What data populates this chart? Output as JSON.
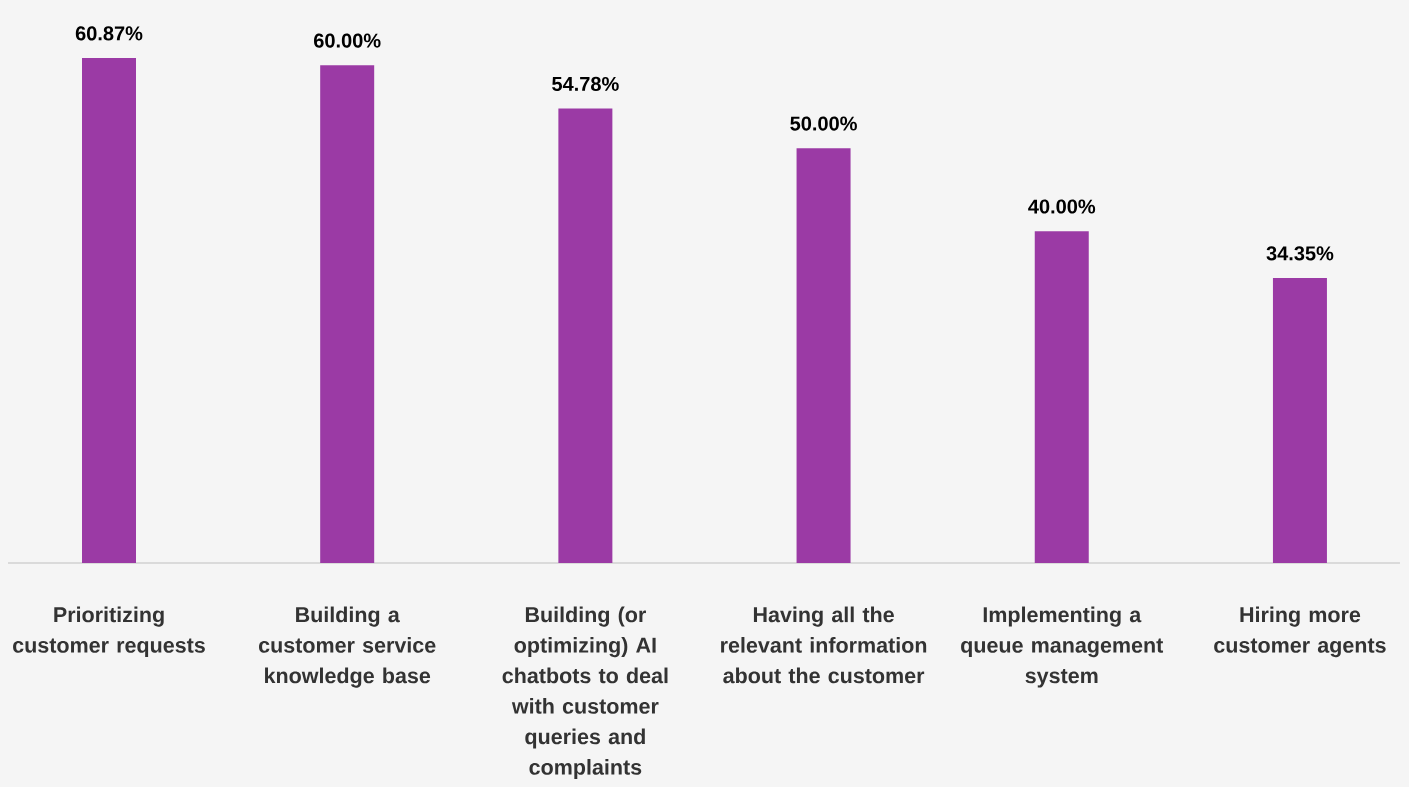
{
  "chart_data": {
    "type": "bar",
    "categories": [
      "Prioritizing customer requests",
      "Building a customer service knowledge base",
      "Building (or optimizing) AI chatbots to deal with customer queries and complaints",
      "Having all the relevant information about the customer",
      "Implementing a queue management system",
      "Hiring more customer agents"
    ],
    "values": [
      60.87,
      60.0,
      54.78,
      50.0,
      40.0,
      34.35
    ],
    "value_labels": [
      "60.87%",
      "60.00%",
      "54.78%",
      "50.00%",
      "40.00%",
      "34.35%"
    ],
    "color": "#9b3aa5"
  }
}
